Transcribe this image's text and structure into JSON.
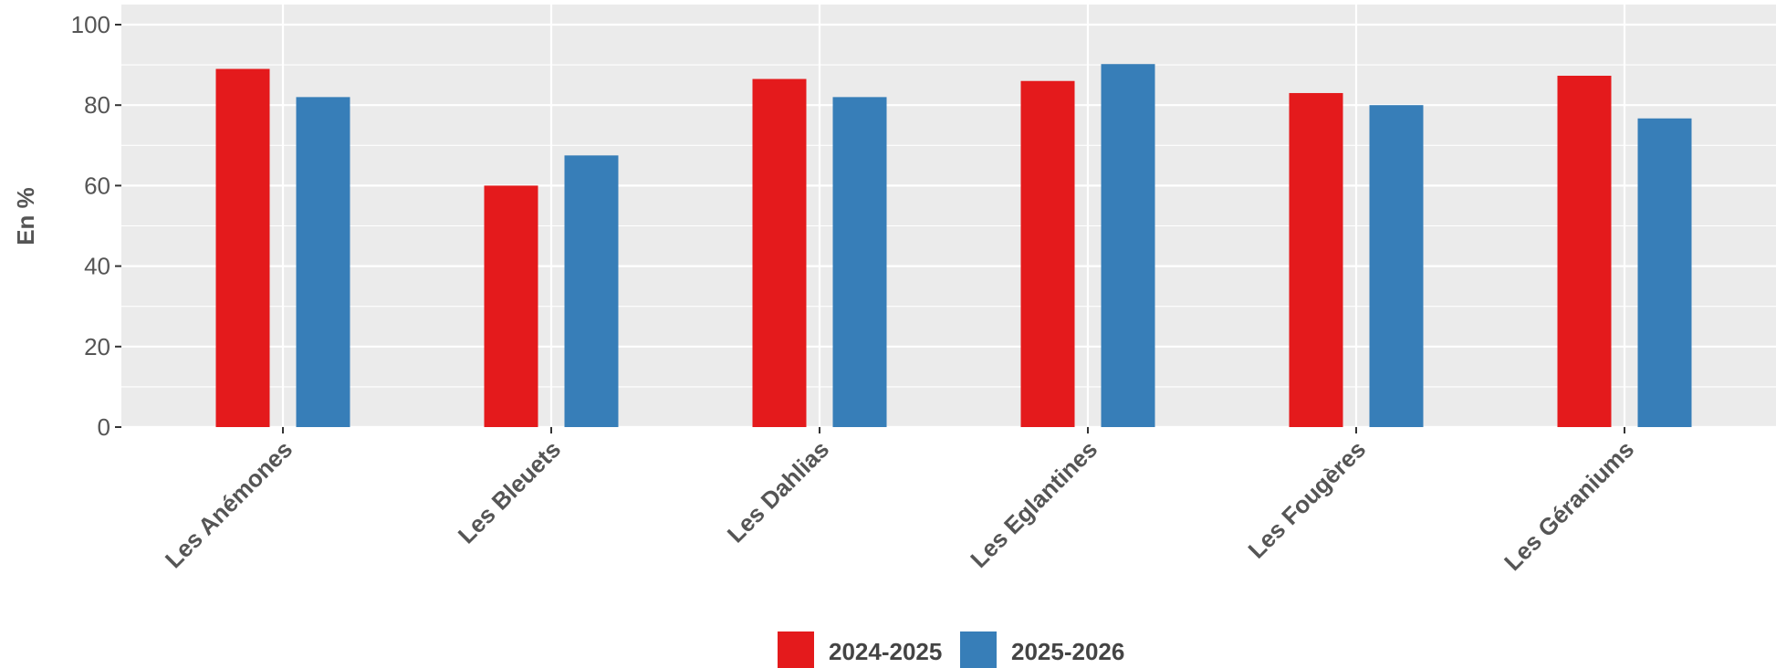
{
  "chart_data": {
    "type": "bar",
    "title": "",
    "xlabel": "",
    "ylabel": "En %",
    "ylim": [
      0,
      100
    ],
    "yticks": [
      0,
      20,
      40,
      60,
      80,
      100
    ],
    "grid": true,
    "legend_position": "bottom",
    "categories": [
      "Les Anémones",
      "Les Bleuets",
      "Les Dahlias",
      "Les Eglantines",
      "Les Fougères",
      "Les Géraniums"
    ],
    "series": [
      {
        "name": "2024-2025",
        "color": "#e41a1c",
        "values": [
          89,
          60,
          86.5,
          86,
          83,
          87.3
        ]
      },
      {
        "name": "2025-2026",
        "color": "#377eb8",
        "values": [
          82,
          67.5,
          82,
          90.2,
          80,
          76.7
        ]
      }
    ],
    "colors": {
      "panel_background": "#ebebeb",
      "grid": "#ffffff",
      "text": "#555555"
    }
  }
}
